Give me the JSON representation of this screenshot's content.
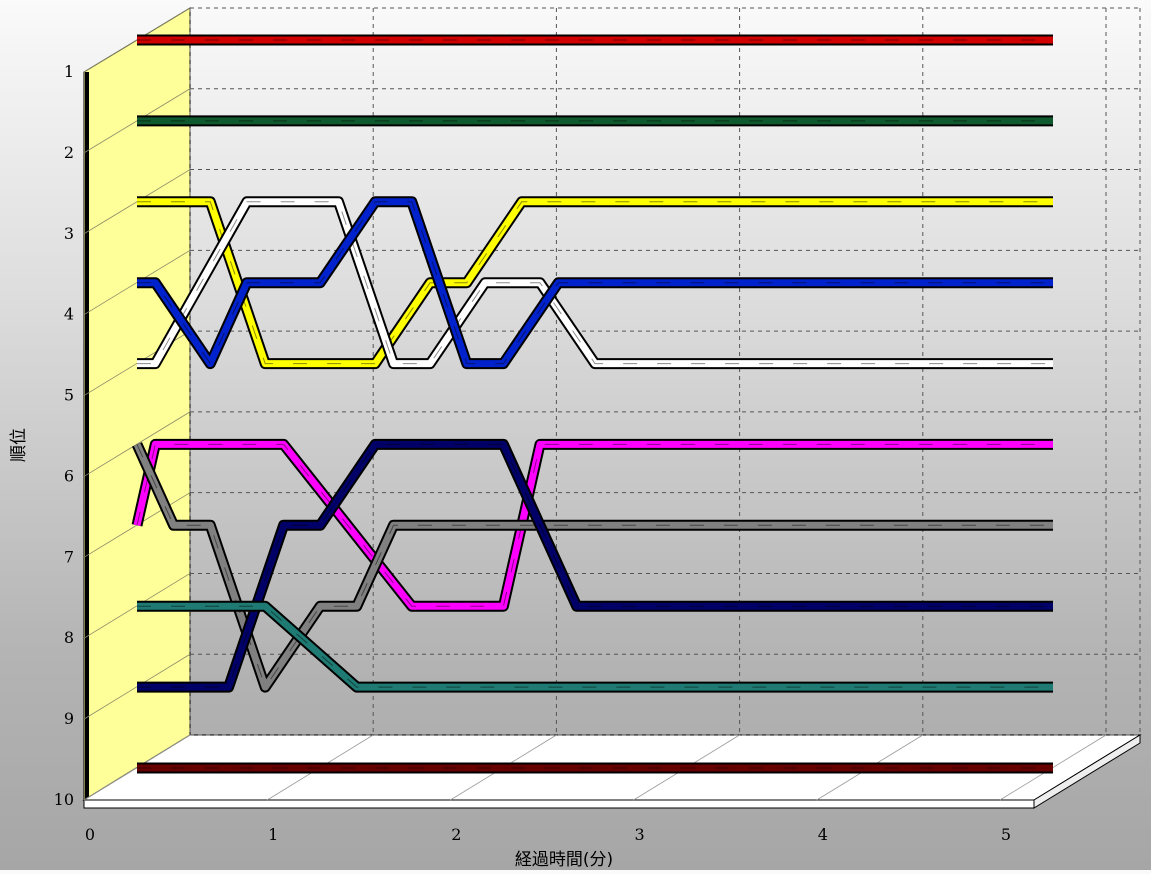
{
  "chart_data": {
    "type": "line",
    "style": "3d-ribbon",
    "xlabel": "経過時間(分)",
    "ylabel": "順位",
    "xlim": [
      0,
      5
    ],
    "ylim": [
      1,
      10
    ],
    "y_inverted": true,
    "x_ticks": [
      "0",
      "1",
      "2",
      "3",
      "4",
      "5"
    ],
    "y_ticks": [
      "1",
      "2",
      "3",
      "4",
      "5",
      "6",
      "7",
      "8",
      "9",
      "10"
    ],
    "grid": true,
    "legend": "none",
    "colors": {
      "wall": "#ffff99",
      "floor": "#ffffff",
      "background_top": "#fafafa",
      "background_bottom": "#a6a6a6"
    },
    "series": [
      {
        "color": "#d00000",
        "points": [
          [
            0,
            1
          ],
          [
            5,
            1
          ]
        ]
      },
      {
        "color": "#0e5a2e",
        "points": [
          [
            0,
            2
          ],
          [
            5,
            2
          ]
        ]
      },
      {
        "color": "#ffff00",
        "points": [
          [
            0,
            3
          ],
          [
            0.4,
            3
          ],
          [
            0.7,
            5
          ],
          [
            1.3,
            5
          ],
          [
            1.6,
            4
          ],
          [
            1.8,
            4
          ],
          [
            2.1,
            3
          ],
          [
            5,
            3
          ]
        ]
      },
      {
        "color": "#ffffff",
        "points": [
          [
            0,
            5
          ],
          [
            0.1,
            5
          ],
          [
            0.6,
            3
          ],
          [
            1.1,
            3
          ],
          [
            1.4,
            5
          ],
          [
            1.6,
            5
          ],
          [
            1.9,
            4
          ],
          [
            2.2,
            4
          ],
          [
            2.5,
            5
          ],
          [
            5,
            5
          ]
        ]
      },
      {
        "color": "#0022cc",
        "points": [
          [
            0,
            4
          ],
          [
            0.1,
            4
          ],
          [
            0.4,
            5
          ],
          [
            0.6,
            4
          ],
          [
            1.0,
            4
          ],
          [
            1.3,
            3
          ],
          [
            1.5,
            3
          ],
          [
            1.8,
            5
          ],
          [
            2.0,
            5
          ],
          [
            2.3,
            4
          ],
          [
            5,
            4
          ]
        ]
      },
      {
        "color": "#ff00ff",
        "points": [
          [
            0,
            7
          ],
          [
            0.1,
            6
          ],
          [
            0.8,
            6
          ],
          [
            1.5,
            8
          ],
          [
            2.0,
            8
          ],
          [
            2.2,
            6
          ],
          [
            5,
            6
          ]
        ]
      },
      {
        "color": "#808080",
        "points": [
          [
            0,
            6
          ],
          [
            0.2,
            7
          ],
          [
            0.4,
            7
          ],
          [
            0.7,
            9
          ],
          [
            1.0,
            8
          ],
          [
            1.2,
            8
          ],
          [
            1.4,
            7
          ],
          [
            5,
            7
          ]
        ]
      },
      {
        "color": "#000066",
        "points": [
          [
            0,
            9
          ],
          [
            0.5,
            9
          ],
          [
            0.8,
            7
          ],
          [
            1.0,
            7
          ],
          [
            1.3,
            6
          ],
          [
            2.0,
            6
          ],
          [
            2.4,
            8
          ],
          [
            5,
            8
          ]
        ]
      },
      {
        "color": "#1e7a72",
        "points": [
          [
            0,
            8
          ],
          [
            0.7,
            8
          ],
          [
            1.2,
            9
          ],
          [
            5,
            9
          ]
        ]
      },
      {
        "color": "#660000",
        "points": [
          [
            0,
            10
          ],
          [
            5,
            10
          ]
        ]
      }
    ]
  }
}
